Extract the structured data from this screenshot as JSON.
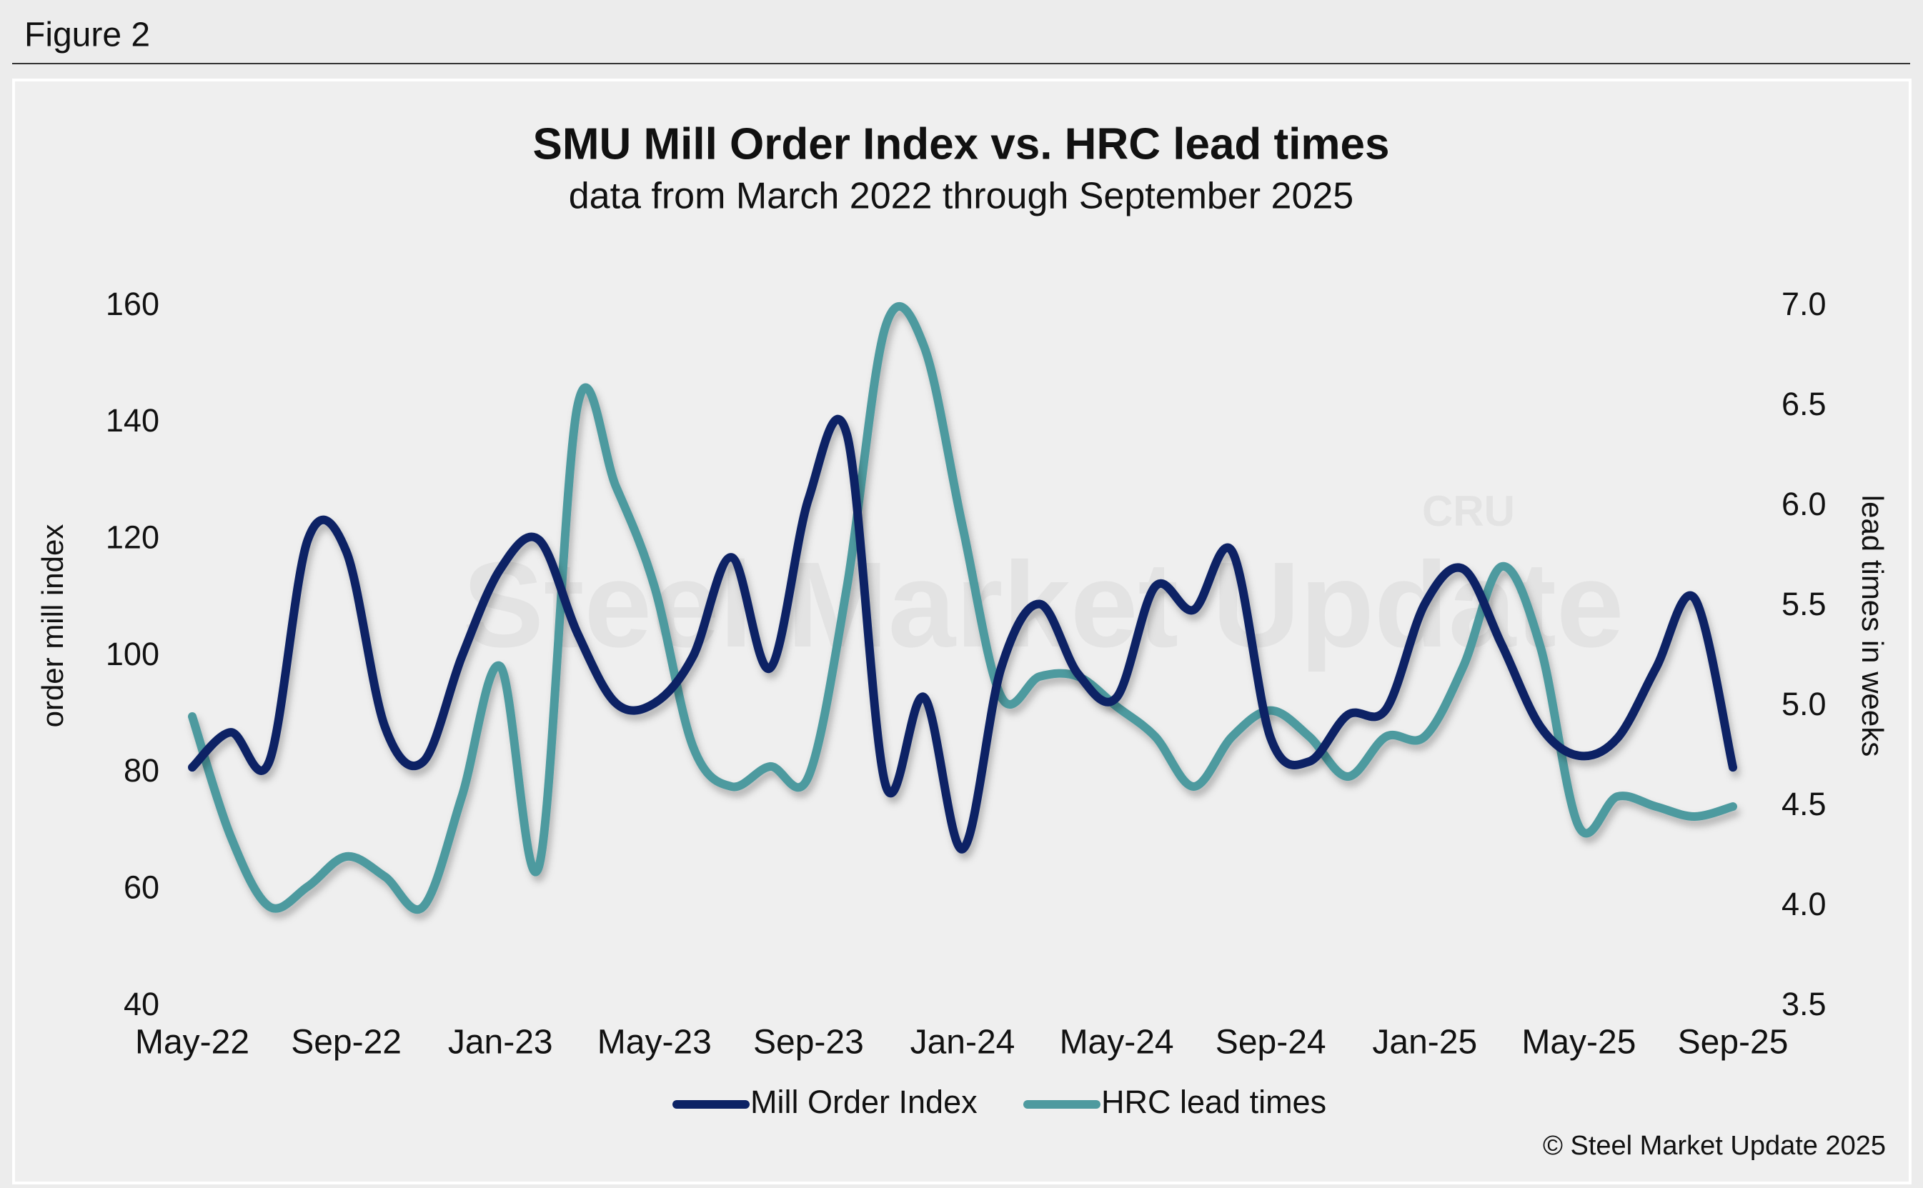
{
  "figure_label": "Figure 2",
  "chart_data": {
    "type": "line",
    "title": "SMU Mill Order Index vs. HRC lead times",
    "subtitle": "data from March 2022 through September 2025",
    "y_label": "order mill index",
    "y2_label": "lead times in weeks",
    "watermark": "Steel Market Update",
    "watermark_logo": "CRU",
    "source": "© Steel Market Update 2025",
    "categories": [
      "May-22",
      null,
      null,
      null,
      "Sep-22",
      null,
      null,
      null,
      "Jan-23",
      null,
      null,
      null,
      "May-23",
      null,
      null,
      null,
      "Sep-23",
      null,
      null,
      null,
      "Jan-24",
      null,
      null,
      null,
      "May-24",
      null,
      null,
      null,
      "Sep-24",
      null,
      null,
      null,
      "Jan-25",
      null,
      null,
      null,
      "May-25",
      null,
      null,
      null,
      "Sep-25"
    ],
    "series": [
      {
        "name": "Mill Order Index",
        "color": "#0b2265",
        "values": [
          81,
          87,
          82,
          120,
          118,
          88,
          82,
          100,
          115,
          120,
          104,
          92,
          92,
          100,
          117,
          98,
          127,
          138,
          78,
          93,
          67,
          98,
          109,
          97,
          93,
          112,
          108,
          118,
          86,
          82,
          90,
          91,
          109,
          115,
          102,
          88,
          83,
          86,
          98,
          110,
          81
        ]
      },
      {
        "name": "HRC lead times",
        "color": "#4e9a9f",
        "axis": "y2",
        "values": [
          4.95,
          4.35,
          4.0,
          4.1,
          4.25,
          4.15,
          4.0,
          4.55,
          5.2,
          4.2,
          6.5,
          6.1,
          5.6,
          4.8,
          4.6,
          4.7,
          4.65,
          5.6,
          6.9,
          6.8,
          5.9,
          5.05,
          5.15,
          5.15,
          5.0,
          4.85,
          4.6,
          4.85,
          4.98,
          4.85,
          4.65,
          4.85,
          4.85,
          5.2,
          5.7,
          5.3,
          4.4,
          4.55,
          4.5,
          4.45,
          4.5
        ]
      }
    ],
    "ylim": [
      40,
      160
    ],
    "yticks": [
      40,
      60,
      80,
      100,
      120,
      140,
      160
    ],
    "y2lim": [
      3.5,
      7.0
    ],
    "y2ticks": [
      {
        "value": 3.5,
        "label": "3.5"
      },
      {
        "value": 4.0,
        "label": "4.0"
      },
      {
        "value": 4.5,
        "label": "4.5"
      },
      {
        "value": 5.0,
        "label": "5.0"
      },
      {
        "value": 5.5,
        "label": "5.5"
      },
      {
        "value": 6.0,
        "label": "6.0"
      },
      {
        "value": 6.5,
        "label": "6.5"
      },
      {
        "value": 7.0,
        "label": "7.0"
      }
    ],
    "grid": false,
    "legend": "bottom"
  }
}
